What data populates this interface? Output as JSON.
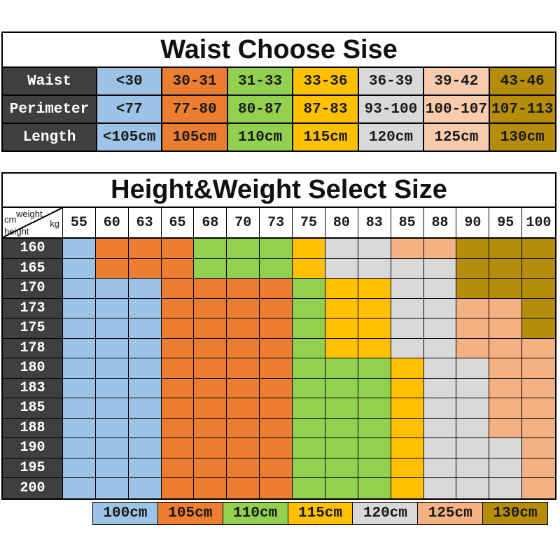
{
  "colors": {
    "blue": "#9DC3E6",
    "orange": "#ED7D31",
    "green": "#92D050",
    "yellow": "#FFC000",
    "gray": "#D9D9D9",
    "peach": "#F4B183",
    "peach_light": "#F8CBAD",
    "gold": "#B58D0B",
    "header_dark": "#3F3F3F"
  },
  "chart_data": [
    {
      "type": "table",
      "title": "Waist Choose Sise",
      "column_colors": [
        "blue",
        "orange",
        "green",
        "yellow",
        "gray",
        "peach_light",
        "gold"
      ],
      "rows": [
        {
          "label": "Waist",
          "cells": [
            "<30",
            "30-31",
            "31-33",
            "33-36",
            "36-39",
            "39-42",
            "43-46"
          ]
        },
        {
          "label": "Perimeter",
          "cells": [
            "<77",
            "77-80",
            "80-87",
            "87-83",
            "93-100",
            "100-107",
            "107-113"
          ]
        },
        {
          "label": "Length",
          "cells": [
            "<105cm",
            "105cm",
            "110cm",
            "115cm",
            "120cm",
            "125cm",
            "130cm"
          ]
        }
      ]
    },
    {
      "type": "table",
      "title": "Height&Weight Select Size",
      "corner": {
        "col_unit_top": "weight",
        "col_unit_bottom": "kg",
        "row_unit_top": "cm",
        "row_unit_bottom": "height"
      },
      "weight_headers": [
        "55",
        "60",
        "63",
        "65",
        "68",
        "70",
        "73",
        "75",
        "80",
        "83",
        "85",
        "88",
        "90",
        "95",
        "100"
      ],
      "height_rows": [
        {
          "height": "160",
          "cells": [
            "blue",
            "orange",
            "orange",
            "orange",
            "green",
            "green",
            "green",
            "yellow",
            "gray",
            "gray",
            "peach",
            "peach",
            "gold",
            "gold",
            "gold"
          ]
        },
        {
          "height": "165",
          "cells": [
            "blue",
            "orange",
            "orange",
            "orange",
            "green",
            "green",
            "green",
            "yellow",
            "gray",
            "gray",
            "gray",
            "gray",
            "gold",
            "gold",
            "gold"
          ]
        },
        {
          "height": "170",
          "cells": [
            "blue",
            "blue",
            "blue",
            "orange",
            "orange",
            "orange",
            "orange",
            "green",
            "yellow",
            "yellow",
            "gray",
            "gray",
            "gold",
            "gold",
            "gold"
          ]
        },
        {
          "height": "173",
          "cells": [
            "blue",
            "blue",
            "blue",
            "orange",
            "orange",
            "orange",
            "orange",
            "green",
            "yellow",
            "yellow",
            "gray",
            "gray",
            "peach",
            "peach",
            "gold"
          ]
        },
        {
          "height": "175",
          "cells": [
            "blue",
            "blue",
            "blue",
            "orange",
            "orange",
            "orange",
            "orange",
            "green",
            "yellow",
            "yellow",
            "gray",
            "gray",
            "peach",
            "peach",
            "gold"
          ]
        },
        {
          "height": "178",
          "cells": [
            "blue",
            "blue",
            "blue",
            "orange",
            "orange",
            "orange",
            "orange",
            "green",
            "yellow",
            "yellow",
            "gray",
            "gray",
            "peach",
            "peach",
            "peach"
          ]
        },
        {
          "height": "180",
          "cells": [
            "blue",
            "blue",
            "blue",
            "orange",
            "orange",
            "orange",
            "orange",
            "green",
            "green",
            "green",
            "yellow",
            "gray",
            "gray",
            "peach",
            "peach"
          ]
        },
        {
          "height": "183",
          "cells": [
            "blue",
            "blue",
            "blue",
            "orange",
            "orange",
            "orange",
            "orange",
            "green",
            "green",
            "green",
            "yellow",
            "gray",
            "gray",
            "peach",
            "peach"
          ]
        },
        {
          "height": "185",
          "cells": [
            "blue",
            "blue",
            "blue",
            "orange",
            "orange",
            "orange",
            "orange",
            "green",
            "green",
            "green",
            "yellow",
            "gray",
            "gray",
            "peach",
            "peach"
          ]
        },
        {
          "height": "188",
          "cells": [
            "blue",
            "blue",
            "blue",
            "orange",
            "orange",
            "orange",
            "orange",
            "green",
            "green",
            "green",
            "yellow",
            "gray",
            "gray",
            "peach",
            "peach"
          ]
        },
        {
          "height": "190",
          "cells": [
            "blue",
            "blue",
            "blue",
            "orange",
            "orange",
            "orange",
            "orange",
            "green",
            "green",
            "green",
            "yellow",
            "gray",
            "gray",
            "gray",
            "peach"
          ]
        },
        {
          "height": "195",
          "cells": [
            "blue",
            "blue",
            "blue",
            "orange",
            "orange",
            "orange",
            "orange",
            "green",
            "green",
            "green",
            "yellow",
            "gray",
            "gray",
            "gray",
            "peach"
          ]
        },
        {
          "height": "200",
          "cells": [
            "blue",
            "blue",
            "blue",
            "orange",
            "orange",
            "orange",
            "orange",
            "green",
            "green",
            "green",
            "yellow",
            "gray",
            "gray",
            "gray",
            "peach"
          ]
        }
      ],
      "legend": [
        {
          "label": "100cm",
          "color": "blue"
        },
        {
          "label": "105cm",
          "color": "orange"
        },
        {
          "label": "110cm",
          "color": "green"
        },
        {
          "label": "115cm",
          "color": "yellow"
        },
        {
          "label": "120cm",
          "color": "gray"
        },
        {
          "label": "125cm",
          "color": "peach"
        },
        {
          "label": "130cm",
          "color": "gold"
        }
      ]
    }
  ]
}
